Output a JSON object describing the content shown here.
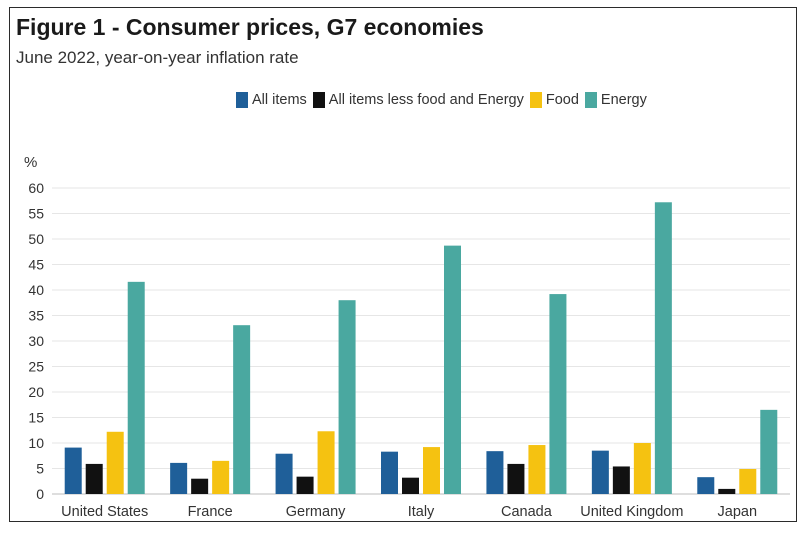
{
  "header": {
    "title": "Figure 1 - Consumer prices, G7 economies",
    "subtitle": "June 2022, year-on-year inflation rate"
  },
  "chart_data": {
    "type": "bar",
    "title": "Figure 1 - Consumer prices, G7 economies",
    "subtitle": "June 2022, year-on-year inflation rate",
    "ylabel": "%",
    "xlabel": "",
    "ylim": [
      0,
      60
    ],
    "yticks": [
      0,
      5,
      10,
      15,
      20,
      25,
      30,
      35,
      40,
      45,
      50,
      55,
      60
    ],
    "grid": true,
    "legend_position": "top",
    "categories": [
      "United States",
      "France",
      "Germany",
      "Italy",
      "Canada",
      "United Kingdom",
      "Japan"
    ],
    "series": [
      {
        "name": "All items",
        "color": "#1f5f99",
        "values": [
          9.1,
          6.1,
          7.9,
          8.3,
          8.4,
          8.5,
          3.3
        ]
      },
      {
        "name": "All items less food and Energy",
        "color": "#111111",
        "values": [
          5.9,
          3.0,
          3.4,
          3.2,
          5.9,
          5.4,
          1.0
        ]
      },
      {
        "name": "Food",
        "color": "#f5c211",
        "values": [
          12.2,
          6.5,
          12.3,
          9.2,
          9.6,
          10.0,
          4.9
        ]
      },
      {
        "name": "Energy",
        "color": "#4aa8a0",
        "values": [
          41.6,
          33.1,
          38.0,
          48.7,
          39.2,
          57.2,
          16.5
        ]
      }
    ]
  }
}
